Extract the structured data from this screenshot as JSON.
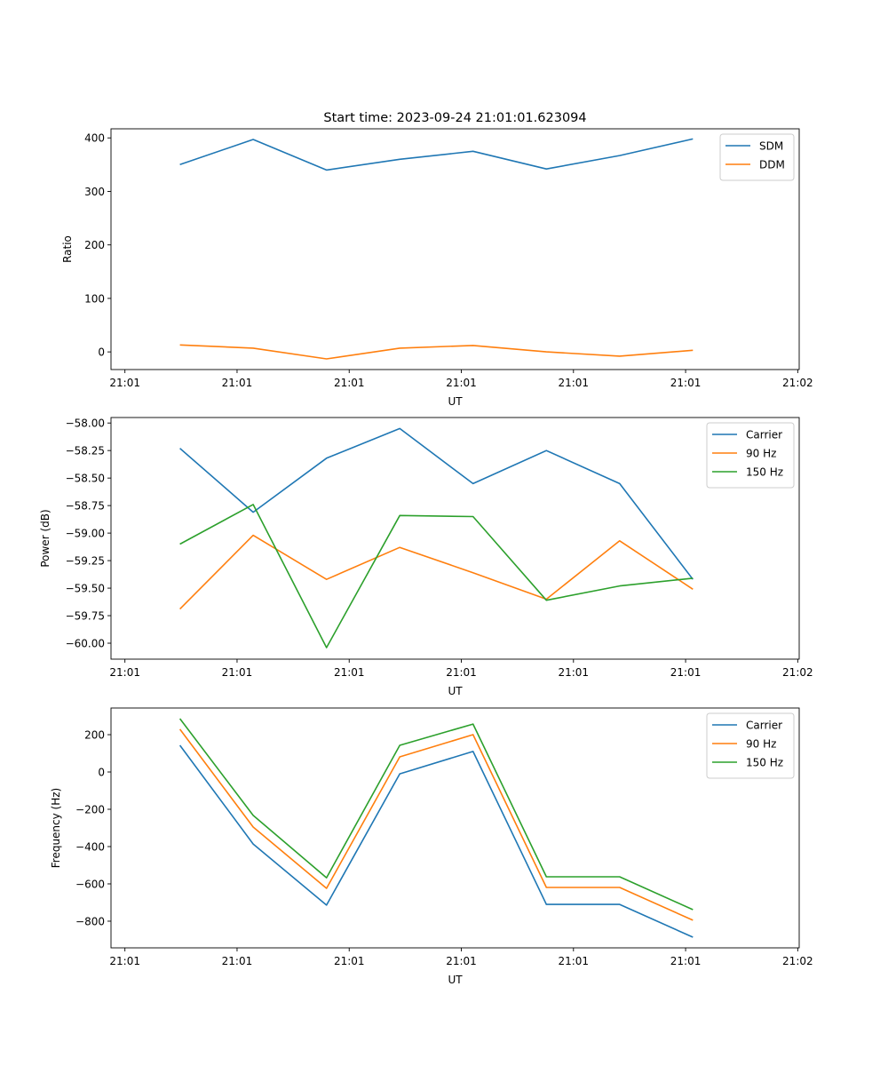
{
  "chart_data": [
    {
      "type": "line",
      "title": "Start time: 2023-09-24 21:01:01.623094",
      "xlabel": "UT",
      "ylabel": "Ratio",
      "x": [
        0,
        1,
        2,
        3,
        4,
        5,
        6,
        7
      ],
      "xticks": [
        -0.75,
        0.78,
        2.31,
        3.84,
        5.37,
        6.9,
        8.43
      ],
      "xtick_labels": [
        "21:01",
        "21:01",
        "21:01",
        "21:01",
        "21:01",
        "21:01",
        "21:02"
      ],
      "xlim": [
        -0.94,
        8.45
      ],
      "ylim": [
        -33,
        417
      ],
      "yticks": [
        0,
        100,
        200,
        300,
        400
      ],
      "ytick_labels": [
        "0",
        "100",
        "200",
        "300",
        "400"
      ],
      "legend_position": "top-right",
      "series": [
        {
          "name": "SDM",
          "color": "#1f77b4",
          "values": [
            350,
            397,
            340,
            360,
            375,
            342,
            367,
            398
          ]
        },
        {
          "name": "DDM",
          "color": "#ff7f0e",
          "values": [
            13,
            7,
            -13,
            7,
            12,
            0,
            -8,
            3
          ]
        }
      ]
    },
    {
      "type": "line",
      "title": "",
      "xlabel": "UT",
      "ylabel": "Power (dB)",
      "x": [
        0,
        1,
        2,
        3,
        4,
        5,
        6,
        7
      ],
      "xticks": [
        -0.75,
        0.78,
        2.31,
        3.84,
        5.37,
        6.9,
        8.43
      ],
      "xtick_labels": [
        "21:01",
        "21:01",
        "21:01",
        "21:01",
        "21:01",
        "21:01",
        "21:02"
      ],
      "xlim": [
        -0.94,
        8.45
      ],
      "ylim": [
        -60.145,
        -57.95
      ],
      "yticks": [
        -58.0,
        -58.25,
        -58.5,
        -58.75,
        -59.0,
        -59.25,
        -59.5,
        -59.75,
        -60.0
      ],
      "ytick_labels": [
        "−58.00",
        "−58.25",
        "−58.50",
        "−58.75",
        "−59.00",
        "−59.25",
        "−59.50",
        "−59.75",
        "−60.00"
      ],
      "legend_position": "top-right",
      "series": [
        {
          "name": "Carrier",
          "color": "#1f77b4",
          "values": [
            -58.23,
            -58.81,
            -58.32,
            -58.05,
            -58.55,
            -58.25,
            -58.55,
            -59.42
          ]
        },
        {
          "name": "90 Hz",
          "color": "#ff7f0e",
          "values": [
            -59.69,
            -59.02,
            -59.42,
            -59.13,
            -59.36,
            -59.6,
            -59.07,
            -59.51
          ]
        },
        {
          "name": "150 Hz",
          "color": "#2ca02c",
          "values": [
            -59.1,
            -58.74,
            -60.04,
            -58.84,
            -58.85,
            -59.61,
            -59.48,
            -59.41
          ]
        }
      ]
    },
    {
      "type": "line",
      "title": "",
      "xlabel": "UT",
      "ylabel": "Frequency (Hz)",
      "x": [
        0,
        1,
        2,
        3,
        4,
        5,
        6,
        7
      ],
      "xticks": [
        -0.75,
        0.78,
        2.31,
        3.84,
        5.37,
        6.9,
        8.43
      ],
      "xtick_labels": [
        "21:01",
        "21:01",
        "21:01",
        "21:01",
        "21:01",
        "21:01",
        "21:02"
      ],
      "xlim": [
        -0.94,
        8.45
      ],
      "ylim": [
        -943,
        343
      ],
      "yticks": [
        200,
        0,
        -200,
        -400,
        -600,
        -800
      ],
      "ytick_labels": [
        "200",
        "0",
        "−200",
        "−400",
        "−600",
        "−800"
      ],
      "legend_position": "top-right",
      "series": [
        {
          "name": "Carrier",
          "color": "#1f77b4",
          "values": [
            143,
            -386,
            -714,
            -10,
            110,
            -710,
            -710,
            -886
          ]
        },
        {
          "name": "90 Hz",
          "color": "#ff7f0e",
          "values": [
            229,
            -295,
            -624,
            81,
            200,
            -619,
            -619,
            -795
          ]
        },
        {
          "name": "150 Hz",
          "color": "#2ca02c",
          "values": [
            286,
            -233,
            -567,
            143,
            257,
            -562,
            -562,
            -738
          ]
        }
      ]
    }
  ]
}
